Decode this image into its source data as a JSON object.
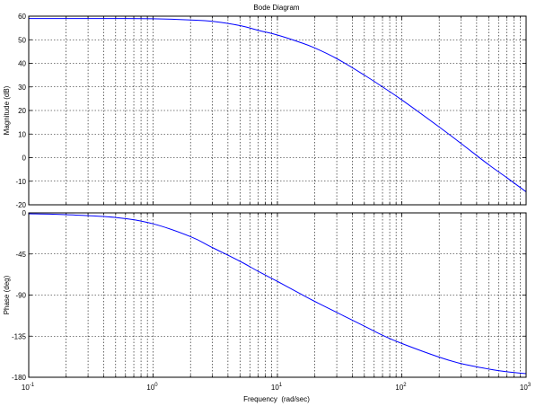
{
  "chart_data": [
    {
      "type": "line",
      "title": "Bode Diagram",
      "xlabel": "",
      "ylabel": "Magnitude (dB)",
      "xscale": "log",
      "xlim": [
        0.1,
        1000
      ],
      "ylim": [
        -20,
        60
      ],
      "yticks": [
        -20,
        -10,
        0,
        10,
        20,
        30,
        40,
        50,
        60
      ],
      "grid": true,
      "line_color": "#0000ff",
      "x": [
        0.1,
        0.2,
        0.5,
        1,
        2,
        3,
        5,
        7,
        10,
        15,
        20,
        30,
        50,
        70,
        100,
        200,
        300,
        500,
        700,
        1000
      ],
      "series": [
        {
          "values": [
            59,
            59,
            59,
            58.9,
            58.4,
            57.8,
            56,
            54,
            52,
            49,
            46.5,
            42,
            35,
            30,
            24.5,
            13,
            6,
            -3,
            -8.5,
            -14.5
          ]
        }
      ]
    },
    {
      "type": "line",
      "title": "",
      "xlabel": "Frequency  (rad/sec)",
      "ylabel": "Phase (deg)",
      "xscale": "log",
      "xlim": [
        0.1,
        1000
      ],
      "xticks": [
        0.1,
        1,
        10,
        100,
        1000
      ],
      "xtick_labels": [
        {
          "base": "10",
          "exp": "-1"
        },
        {
          "base": "10",
          "exp": "0"
        },
        {
          "base": "10",
          "exp": "1"
        },
        {
          "base": "10",
          "exp": "2"
        },
        {
          "base": "10",
          "exp": "3"
        }
      ],
      "ylim": [
        -180,
        0
      ],
      "yticks": [
        0,
        -45,
        -90,
        -135,
        -180
      ],
      "grid": true,
      "line_color": "#0000ff",
      "x": [
        0.1,
        0.2,
        0.5,
        1,
        2,
        3,
        5,
        7,
        10,
        15,
        20,
        30,
        50,
        70,
        100,
        200,
        300,
        500,
        700,
        1000
      ],
      "series": [
        {
          "values": [
            -1,
            -2,
            -5,
            -12,
            -26,
            -38,
            -53,
            -64,
            -75,
            -88,
            -97,
            -109,
            -124,
            -134,
            -143,
            -158,
            -165,
            -171,
            -174,
            -176
          ]
        }
      ]
    }
  ]
}
